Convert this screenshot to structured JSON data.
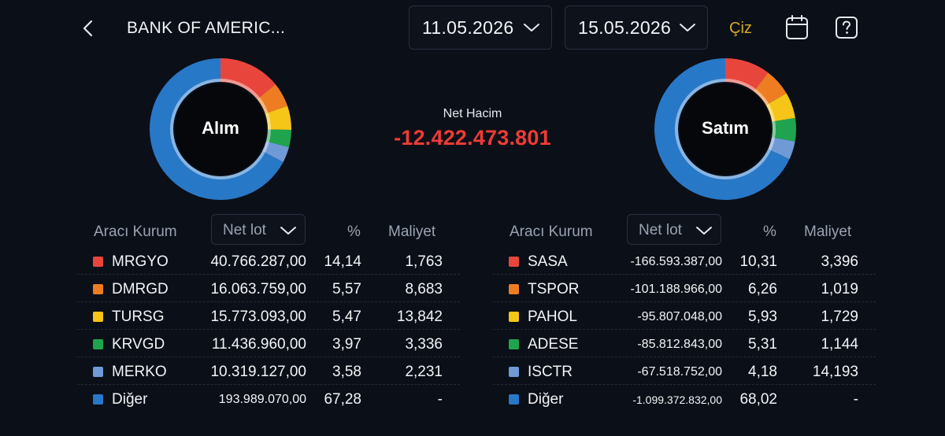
{
  "header": {
    "title": "BANK OF AMERIC...",
    "date_start": "11.05.2026",
    "date_end": "15.05.2026",
    "draw_label": "Çiz"
  },
  "summary": {
    "buy_label": "Alım",
    "sell_label": "Satım",
    "net_label": "Net Hacim",
    "net_value": "-12.422.473.801"
  },
  "colors": {
    "red": "#e8463c",
    "orange": "#ee7d22",
    "yellow": "#f5c518",
    "green": "#20a34e",
    "lightblue": "#6f9ad6",
    "blue": "#2878c8",
    "negative": "#ef3b36",
    "accent": "#d9a925"
  },
  "table_headers": {
    "broker": "Aracı Kurum",
    "lot": "Net lot",
    "pct": "%",
    "cost": "Maliyet"
  },
  "buy_rows": [
    {
      "name": "MRGYO",
      "lot": "40.766.287,00",
      "pct": "14,14",
      "cost": "1,763",
      "color": "#e8463c"
    },
    {
      "name": "DMRGD",
      "lot": "16.063.759,00",
      "pct": "5,57",
      "cost": "8,683",
      "color": "#ee7d22"
    },
    {
      "name": "TURSG",
      "lot": "15.773.093,00",
      "pct": "5,47",
      "cost": "13,842",
      "color": "#f5c518"
    },
    {
      "name": "KRVGD",
      "lot": "11.436.960,00",
      "pct": "3,97",
      "cost": "3,336",
      "color": "#20a34e"
    },
    {
      "name": "MERKO",
      "lot": "10.319.127,00",
      "pct": "3,58",
      "cost": "2,231",
      "color": "#6f9ad6"
    },
    {
      "name": "Diğer",
      "lot": "193.989.070,00",
      "pct": "67,28",
      "cost": "-",
      "color": "#2878c8"
    }
  ],
  "sell_rows": [
    {
      "name": "SASA",
      "lot": "-166.593.387,00",
      "pct": "10,31",
      "cost": "3,396",
      "color": "#e8463c"
    },
    {
      "name": "TSPOR",
      "lot": "-101.188.966,00",
      "pct": "6,26",
      "cost": "1,019",
      "color": "#ee7d22"
    },
    {
      "name": "PAHOL",
      "lot": "-95.807.048,00",
      "pct": "5,93",
      "cost": "1,729",
      "color": "#f5c518"
    },
    {
      "name": "ADESE",
      "lot": "-85.812.843,00",
      "pct": "5,31",
      "cost": "1,144",
      "color": "#20a34e"
    },
    {
      "name": "ISCTR",
      "lot": "-67.518.752,00",
      "pct": "4,18",
      "cost": "14,193",
      "color": "#6f9ad6"
    },
    {
      "name": "Diğer",
      "lot": "-1.099.372.832,00",
      "pct": "68,02",
      "cost": "-",
      "color": "#2878c8"
    }
  ],
  "icons": {
    "back": "chevron-left-icon",
    "dropdown": "chevron-down-icon",
    "calendar": "calendar-icon",
    "help": "help-icon"
  }
}
